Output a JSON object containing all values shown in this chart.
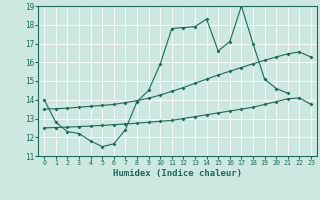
{
  "xlabel": "Humidex (Indice chaleur)",
  "xlim": [
    -0.5,
    23.5
  ],
  "ylim": [
    11,
    19
  ],
  "xticks": [
    0,
    1,
    2,
    3,
    4,
    5,
    6,
    7,
    8,
    9,
    10,
    11,
    12,
    13,
    14,
    15,
    16,
    17,
    18,
    19,
    20,
    21,
    22,
    23
  ],
  "yticks": [
    11,
    12,
    13,
    14,
    15,
    16,
    17,
    18,
    19
  ],
  "bg_color": "#cce8e0",
  "line_color": "#1a6b5a",
  "grid_color": "#ffffff",
  "series1_x": [
    0,
    1,
    2,
    3,
    4,
    5,
    6,
    7,
    8,
    9,
    10,
    11,
    12,
    13,
    14,
    15,
    16,
    17,
    18,
    19,
    20,
    21
  ],
  "series1_y": [
    14.0,
    12.8,
    12.3,
    12.2,
    11.8,
    11.5,
    11.65,
    12.4,
    13.9,
    14.5,
    15.9,
    17.8,
    17.85,
    17.9,
    18.3,
    16.6,
    17.1,
    19.0,
    17.0,
    15.1,
    14.6,
    14.35
  ],
  "series2_x": [
    0,
    1,
    2,
    3,
    4,
    5,
    6,
    7,
    8,
    9,
    10,
    11,
    12,
    13,
    14,
    15,
    16,
    17,
    18,
    19,
    20,
    21,
    22,
    23
  ],
  "series2_y": [
    12.5,
    12.52,
    12.54,
    12.57,
    12.6,
    12.63,
    12.67,
    12.71,
    12.75,
    12.8,
    12.85,
    12.9,
    13.0,
    13.1,
    13.2,
    13.3,
    13.4,
    13.5,
    13.6,
    13.75,
    13.9,
    14.05,
    14.1,
    13.75
  ],
  "series3_x": [
    0,
    1,
    2,
    3,
    4,
    5,
    6,
    7,
    8,
    9,
    10,
    11,
    12,
    13,
    14,
    15,
    16,
    17,
    18,
    19,
    20,
    21,
    22,
    23
  ],
  "series3_y": [
    13.5,
    13.52,
    13.55,
    13.6,
    13.65,
    13.7,
    13.75,
    13.85,
    13.95,
    14.08,
    14.25,
    14.45,
    14.65,
    14.88,
    15.1,
    15.32,
    15.52,
    15.72,
    15.92,
    16.1,
    16.28,
    16.45,
    16.55,
    16.28
  ]
}
